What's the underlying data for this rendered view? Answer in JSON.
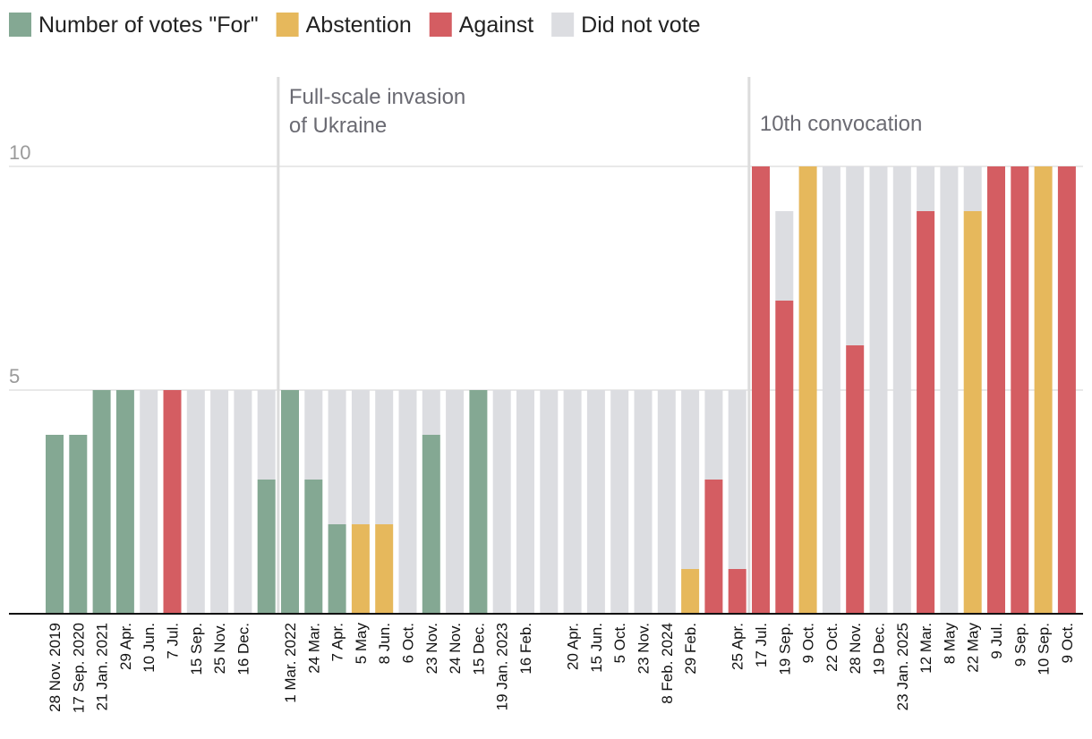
{
  "chart_data": {
    "type": "stacked-bar",
    "legend": [
      {
        "key": "for",
        "label": "Number of votes \"For\"",
        "color": "#84a893"
      },
      {
        "key": "abstention",
        "label": "Abstention",
        "color": "#e6b85c"
      },
      {
        "key": "against",
        "label": "Against",
        "color": "#d45d62"
      },
      {
        "key": "did_not_vote",
        "label": "Did not vote",
        "color": "#dcdde1"
      }
    ],
    "ylim": [
      0,
      10
    ],
    "yticks": [
      {
        "value": 5,
        "label": "5"
      },
      {
        "value": 10,
        "label": "10"
      }
    ],
    "annotations": [
      {
        "before_index": 10,
        "lines": [
          "Full-scale invasion",
          "of Ukraine"
        ],
        "level": 11.4
      },
      {
        "before_index": 30,
        "lines": [
          "10th convocation"
        ],
        "level": 10.8
      }
    ],
    "bars": [
      {
        "label": "28 Nov. 2019",
        "total": 4,
        "for": 4,
        "abstention": 0,
        "against": 0,
        "did_not_vote": 0
      },
      {
        "label": "17 Sep. 2020",
        "total": 4,
        "for": 4,
        "abstention": 0,
        "against": 0,
        "did_not_vote": 0
      },
      {
        "label": "21 Jan. 2021",
        "total": 5,
        "for": 5,
        "abstention": 0,
        "against": 0,
        "did_not_vote": 0
      },
      {
        "label": "29 Apr.",
        "total": 5,
        "for": 5,
        "abstention": 0,
        "against": 0,
        "did_not_vote": 0
      },
      {
        "label": "10 Jun.",
        "total": 5,
        "for": 0,
        "abstention": 0,
        "against": 0,
        "did_not_vote": 5
      },
      {
        "label": "7 Jul.",
        "total": 5,
        "for": 0,
        "abstention": 0,
        "against": 5,
        "did_not_vote": 0
      },
      {
        "label": "15 Sep.",
        "total": 5,
        "for": 0,
        "abstention": 0,
        "against": 0,
        "did_not_vote": 5
      },
      {
        "label": "25 Nov.",
        "total": 5,
        "for": 0,
        "abstention": 0,
        "against": 0,
        "did_not_vote": 5
      },
      {
        "label": "16 Dec.",
        "total": 5,
        "for": 0,
        "abstention": 0,
        "against": 0,
        "did_not_vote": 5
      },
      {
        "label": "",
        "total": 5,
        "for": 3,
        "abstention": 0,
        "against": 0,
        "did_not_vote": 2
      },
      {
        "label": "1 Mar. 2022",
        "total": 5,
        "for": 5,
        "abstention": 0,
        "against": 0,
        "did_not_vote": 0
      },
      {
        "label": "24 Mar.",
        "total": 5,
        "for": 3,
        "abstention": 0,
        "against": 0,
        "did_not_vote": 2
      },
      {
        "label": "7 Apr.",
        "total": 5,
        "for": 2,
        "abstention": 0,
        "against": 0,
        "did_not_vote": 3
      },
      {
        "label": "5 May",
        "total": 5,
        "for": 0,
        "abstention": 2,
        "against": 0,
        "did_not_vote": 3
      },
      {
        "label": "8 Jun.",
        "total": 5,
        "for": 0,
        "abstention": 2,
        "against": 0,
        "did_not_vote": 3
      },
      {
        "label": "6 Oct.",
        "total": 5,
        "for": 0,
        "abstention": 0,
        "against": 0,
        "did_not_vote": 5
      },
      {
        "label": "23 Nov.",
        "total": 5,
        "for": 4,
        "abstention": 0,
        "against": 0,
        "did_not_vote": 1
      },
      {
        "label": "24 Nov.",
        "total": 5,
        "for": 0,
        "abstention": 0,
        "against": 0,
        "did_not_vote": 5
      },
      {
        "label": "15 Dec.",
        "total": 5,
        "for": 5,
        "abstention": 0,
        "against": 0,
        "did_not_vote": 0
      },
      {
        "label": "19 Jan. 2023",
        "total": 5,
        "for": 0,
        "abstention": 0,
        "against": 0,
        "did_not_vote": 5
      },
      {
        "label": "16 Feb.",
        "total": 5,
        "for": 0,
        "abstention": 0,
        "against": 0,
        "did_not_vote": 5
      },
      {
        "label": "",
        "total": 5,
        "for": 0,
        "abstention": 0,
        "against": 0,
        "did_not_vote": 5
      },
      {
        "label": "20 Apr.",
        "total": 5,
        "for": 0,
        "abstention": 0,
        "against": 0,
        "did_not_vote": 5
      },
      {
        "label": "15 Jun.",
        "total": 5,
        "for": 0,
        "abstention": 0,
        "against": 0,
        "did_not_vote": 5
      },
      {
        "label": "5 Oct.",
        "total": 5,
        "for": 0,
        "abstention": 0,
        "against": 0,
        "did_not_vote": 5
      },
      {
        "label": "23 Nov.",
        "total": 5,
        "for": 0,
        "abstention": 0,
        "against": 0,
        "did_not_vote": 5
      },
      {
        "label": "8 Feb. 2024",
        "total": 5,
        "for": 0,
        "abstention": 0,
        "against": 0,
        "did_not_vote": 5
      },
      {
        "label": "29 Feb.",
        "total": 5,
        "for": 0,
        "abstention": 1,
        "against": 0,
        "did_not_vote": 4
      },
      {
        "label": "",
        "total": 5,
        "for": 0,
        "abstention": 0,
        "against": 3,
        "did_not_vote": 2
      },
      {
        "label": "25 Apr.",
        "total": 5,
        "for": 0,
        "abstention": 0,
        "against": 1,
        "did_not_vote": 4
      },
      {
        "label": "17 Jul.",
        "total": 10,
        "for": 0,
        "abstention": 0,
        "against": 10,
        "did_not_vote": 0
      },
      {
        "label": "19 Sep.",
        "total": 9,
        "for": 0,
        "abstention": 0,
        "against": 7,
        "did_not_vote": 2
      },
      {
        "label": "9 Oct.",
        "total": 10,
        "for": 0,
        "abstention": 10,
        "against": 0,
        "did_not_vote": 0
      },
      {
        "label": "22 Oct.",
        "total": 10,
        "for": 0,
        "abstention": 0,
        "against": 0,
        "did_not_vote": 10
      },
      {
        "label": "28 Nov.",
        "total": 10,
        "for": 0,
        "abstention": 0,
        "against": 6,
        "did_not_vote": 4
      },
      {
        "label": "19 Dec.",
        "total": 10,
        "for": 0,
        "abstention": 0,
        "against": 0,
        "did_not_vote": 10
      },
      {
        "label": "23 Jan. 2025",
        "total": 10,
        "for": 0,
        "abstention": 0,
        "against": 0,
        "did_not_vote": 10
      },
      {
        "label": "12 Mar.",
        "total": 10,
        "for": 0,
        "abstention": 0,
        "against": 9,
        "did_not_vote": 1
      },
      {
        "label": "8 May",
        "total": 10,
        "for": 0,
        "abstention": 0,
        "against": 0,
        "did_not_vote": 10
      },
      {
        "label": "22 May",
        "total": 10,
        "for": 0,
        "abstention": 9,
        "against": 0,
        "did_not_vote": 1
      },
      {
        "label": "9 Jul.",
        "total": 10,
        "for": 0,
        "abstention": 0,
        "against": 10,
        "did_not_vote": 0
      },
      {
        "label": "9 Sep.",
        "total": 10,
        "for": 0,
        "abstention": 0,
        "against": 10,
        "did_not_vote": 0
      },
      {
        "label": "10 Sep.",
        "total": 10,
        "for": 0,
        "abstention": 10,
        "against": 0,
        "did_not_vote": 0
      },
      {
        "label": "9 Oct.",
        "total": 10,
        "for": 0,
        "abstention": 0,
        "against": 10,
        "did_not_vote": 0
      }
    ]
  }
}
